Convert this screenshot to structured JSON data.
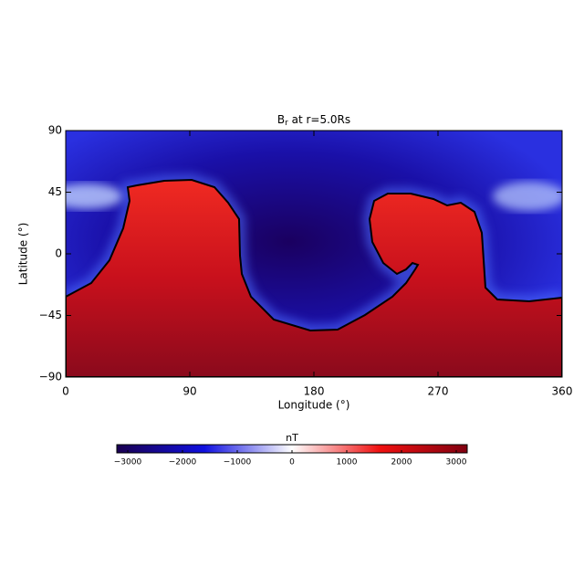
{
  "chart_data": {
    "type": "heatmap",
    "title": {
      "main": "B",
      "sub": "r",
      "rest": "at r=5.0Rs"
    },
    "x_label": "Longitude (°)",
    "y_label": "Latitude (°)",
    "xlim": [
      0,
      360
    ],
    "xticks": [
      0,
      90,
      180,
      270,
      360
    ],
    "ylim": [
      -90,
      90
    ],
    "yticks": [
      {
        "value": -90,
        "label": "−90"
      },
      {
        "value": -45,
        "label": "−45"
      },
      0,
      45,
      90
    ],
    "colorbar": {
      "label": "nT",
      "clim": [
        -3200,
        3200
      ],
      "ticks": [
        {
          "value": -3000,
          "label": "−3000"
        },
        {
          "value": -2000,
          "label": "−2000"
        },
        {
          "value": -1000,
          "label": "−1000"
        },
        0,
        1000,
        2000,
        3000
      ],
      "colors": [
        "#1a0050",
        "#1010e0",
        "#ffffff",
        "#f01010",
        "#800010"
      ]
    }
  }
}
